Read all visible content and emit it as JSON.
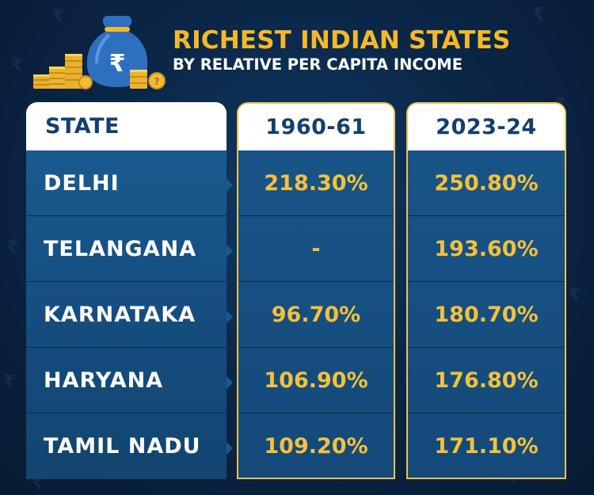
{
  "title": "RICHEST INDIAN STATES",
  "subtitle": "BY RELATIVE PER CAPITA INCOME",
  "colors": {
    "accent": "#f4b92a",
    "header_text": "#123f6d",
    "background": "#0b2748",
    "row": "#1a5a8e"
  },
  "icons": [
    "money-bag-icon",
    "coin-stack-icon",
    "rupee-icon"
  ],
  "chart_data": {
    "type": "table",
    "title": "RICHEST INDIAN STATES",
    "subtitle": "BY RELATIVE PER CAPITA INCOME",
    "columns": [
      "STATE",
      "1960-61",
      "2023-24"
    ],
    "rows": [
      {
        "state": "DELHI",
        "y1960": "218.30%",
        "y2023": "250.80%"
      },
      {
        "state": "TELANGANA",
        "y1960": "-",
        "y2023": "193.60%"
      },
      {
        "state": "KARNATAKA",
        "y1960": "96.70%",
        "y2023": "180.70%"
      },
      {
        "state": "HARYANA",
        "y1960": "106.90%",
        "y2023": "176.80%"
      },
      {
        "state": "TAMIL NADU",
        "y1960": "109.20%",
        "y2023": "171.10%"
      }
    ]
  }
}
